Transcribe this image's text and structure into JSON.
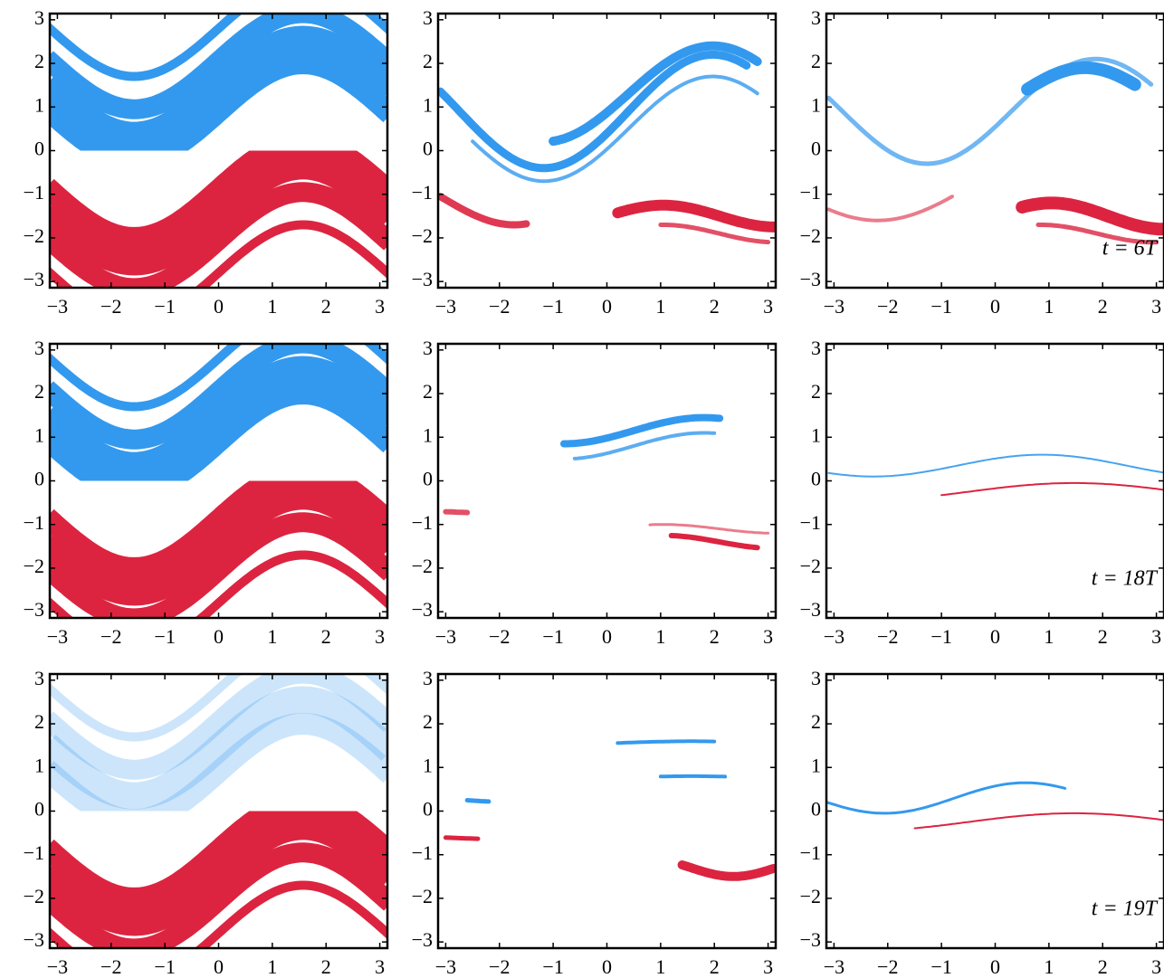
{
  "chart_data": [
    {
      "type": "phase-portrait",
      "xlim": [
        -3.1416,
        3.1416
      ],
      "ylim": [
        -3.1416,
        3.1416
      ],
      "xticks": [
        {
          "value": -3,
          "label": "−3"
        },
        {
          "value": -2,
          "label": "−2"
        },
        {
          "value": -1,
          "label": "−1"
        },
        0,
        1,
        2,
        3
      ],
      "yticks": [
        {
          "value": -3,
          "label": "−3"
        },
        {
          "value": -2,
          "label": "−2"
        },
        {
          "value": -1,
          "label": "−1"
        },
        0,
        1,
        2,
        3
      ],
      "colors": [
        "#3399ee",
        "#dc2440"
      ]
    },
    {
      "type": "phase-portrait",
      "xlim": [
        -3.1416,
        3.1416
      ],
      "ylim": [
        -3.1416,
        3.1416
      ],
      "xticks": [
        {
          "value": -3,
          "label": "−3"
        },
        {
          "value": -2,
          "label": "−2"
        },
        {
          "value": -1,
          "label": "−1"
        },
        0,
        1,
        2,
        3
      ],
      "yticks": [
        {
          "value": -3,
          "label": "−3"
        },
        {
          "value": -2,
          "label": "−2"
        },
        {
          "value": -1,
          "label": "−1"
        },
        0,
        1,
        2,
        3
      ],
      "colors": [
        "#3399ee",
        "#dc2440"
      ]
    },
    {
      "type": "phase-portrait",
      "xlim": [
        -3.1416,
        3.1416
      ],
      "ylim": [
        -3.1416,
        3.1416
      ],
      "xticks": [
        {
          "value": -3,
          "label": "−3"
        },
        {
          "value": -2,
          "label": "−2"
        },
        {
          "value": -1,
          "label": "−1"
        },
        0,
        1,
        2,
        3
      ],
      "yticks": [
        {
          "value": -3,
          "label": "−3"
        },
        {
          "value": -2,
          "label": "−2"
        },
        {
          "value": -1,
          "label": "−1"
        },
        0,
        1,
        2,
        3
      ],
      "colors": [
        "#3399ee",
        "#dc2440"
      ],
      "annotation": "t = 6T"
    },
    {
      "type": "phase-portrait",
      "xlim": [
        -3.1416,
        3.1416
      ],
      "ylim": [
        -3.1416,
        3.1416
      ],
      "xticks": [
        {
          "value": -3,
          "label": "−3"
        },
        {
          "value": -2,
          "label": "−2"
        },
        {
          "value": -1,
          "label": "−1"
        },
        0,
        1,
        2,
        3
      ],
      "yticks": [
        {
          "value": -3,
          "label": "−3"
        },
        {
          "value": -2,
          "label": "−2"
        },
        {
          "value": -1,
          "label": "−1"
        },
        0,
        1,
        2,
        3
      ],
      "colors": [
        "#3399ee",
        "#dc2440"
      ]
    },
    {
      "type": "phase-portrait",
      "xlim": [
        -3.1416,
        3.1416
      ],
      "ylim": [
        -3.1416,
        3.1416
      ],
      "xticks": [
        {
          "value": -3,
          "label": "−3"
        },
        {
          "value": -2,
          "label": "−2"
        },
        {
          "value": -1,
          "label": "−1"
        },
        0,
        1,
        2,
        3
      ],
      "yticks": [
        {
          "value": -3,
          "label": "−3"
        },
        {
          "value": -2,
          "label": "−2"
        },
        {
          "value": -1,
          "label": "−1"
        },
        0,
        1,
        2,
        3
      ],
      "colors": [
        "#3399ee",
        "#dc2440"
      ]
    },
    {
      "type": "phase-portrait",
      "xlim": [
        -3.1416,
        3.1416
      ],
      "ylim": [
        -3.1416,
        3.1416
      ],
      "xticks": [
        {
          "value": -3,
          "label": "−3"
        },
        {
          "value": -2,
          "label": "−2"
        },
        {
          "value": -1,
          "label": "−1"
        },
        0,
        1,
        2,
        3
      ],
      "yticks": [
        {
          "value": -3,
          "label": "−3"
        },
        {
          "value": -2,
          "label": "−2"
        },
        {
          "value": -1,
          "label": "−1"
        },
        0,
        1,
        2,
        3
      ],
      "colors": [
        "#3399ee",
        "#dc2440"
      ],
      "annotation": "t = 18T"
    },
    {
      "type": "phase-portrait",
      "xlim": [
        -3.1416,
        3.1416
      ],
      "ylim": [
        -3.1416,
        3.1416
      ],
      "xticks": [
        {
          "value": -3,
          "label": "−3"
        },
        {
          "value": -2,
          "label": "−2"
        },
        {
          "value": -1,
          "label": "−1"
        },
        0,
        1,
        2,
        3
      ],
      "yticks": [
        {
          "value": -3,
          "label": "−3"
        },
        {
          "value": -2,
          "label": "−2"
        },
        {
          "value": -1,
          "label": "−1"
        },
        0,
        1,
        2,
        3
      ],
      "colors": [
        "#3399ee",
        "#dc2440"
      ]
    },
    {
      "type": "phase-portrait",
      "xlim": [
        -3.1416,
        3.1416
      ],
      "ylim": [
        -3.1416,
        3.1416
      ],
      "xticks": [
        {
          "value": -3,
          "label": "−3"
        },
        {
          "value": -2,
          "label": "−2"
        },
        {
          "value": -1,
          "label": "−1"
        },
        0,
        1,
        2,
        3
      ],
      "yticks": [
        {
          "value": -3,
          "label": "−3"
        },
        {
          "value": -2,
          "label": "−2"
        },
        {
          "value": -1,
          "label": "−1"
        },
        0,
        1,
        2,
        3
      ],
      "colors": [
        "#3399ee",
        "#dc2440"
      ]
    },
    {
      "type": "phase-portrait",
      "xlim": [
        -3.1416,
        3.1416
      ],
      "ylim": [
        -3.1416,
        3.1416
      ],
      "xticks": [
        {
          "value": -3,
          "label": "−3"
        },
        {
          "value": -2,
          "label": "−2"
        },
        {
          "value": -1,
          "label": "−1"
        },
        0,
        1,
        2,
        3
      ],
      "yticks": [
        {
          "value": -3,
          "label": "−3"
        },
        {
          "value": -2,
          "label": "−2"
        },
        {
          "value": -1,
          "label": "−1"
        },
        0,
        1,
        2,
        3
      ],
      "colors": [
        "#3399ee",
        "#dc2440"
      ],
      "annotation": "t = 19T"
    }
  ]
}
